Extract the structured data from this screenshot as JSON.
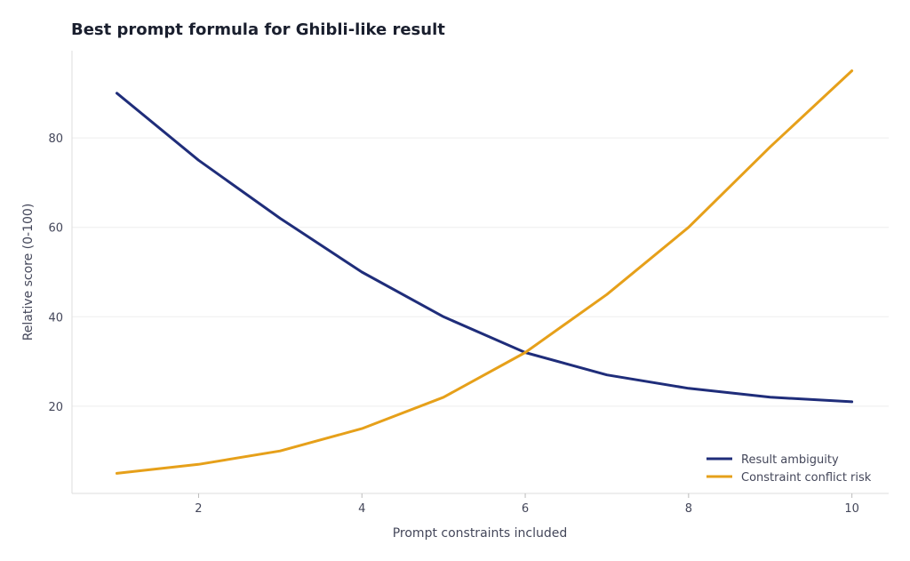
{
  "chart_data": {
    "type": "line",
    "title": "Best prompt formula for Ghibli-like result",
    "xlabel": "Prompt constraints included",
    "ylabel": "Relative score (0-100)",
    "x": [
      1,
      2,
      3,
      4,
      5,
      6,
      7,
      8,
      9,
      10
    ],
    "xlim": [
      0.45,
      10.45
    ],
    "ylim": [
      0.5,
      99.5
    ],
    "xticks": [
      2,
      4,
      6,
      8,
      10
    ],
    "yticks": [
      20,
      40,
      60,
      80
    ],
    "grid": "horizontal",
    "legend_position": "bottom-right",
    "series": [
      {
        "name": "Result ambiguity",
        "color": "#1f2d7a",
        "values": [
          90,
          75,
          62,
          50,
          40,
          32,
          27,
          24,
          22,
          21
        ]
      },
      {
        "name": "Constraint conflict risk",
        "color": "#e6a01a",
        "values": [
          5,
          7,
          10,
          15,
          22,
          32,
          45,
          60,
          78,
          95
        ]
      }
    ]
  }
}
